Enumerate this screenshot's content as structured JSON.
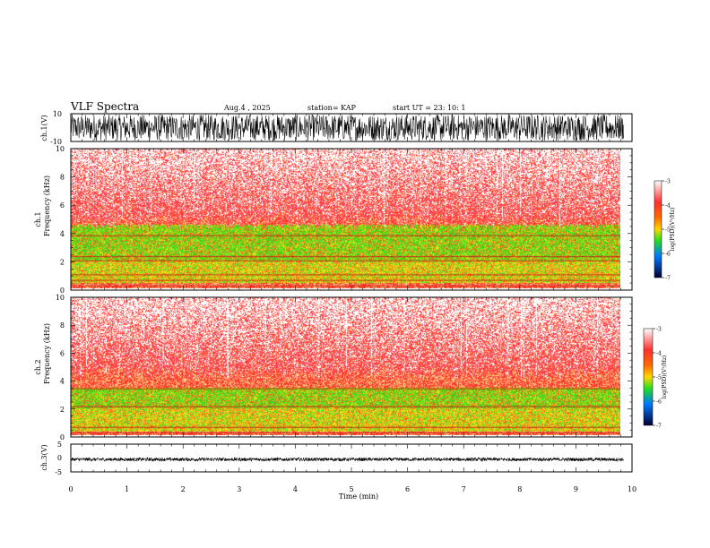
{
  "header": {
    "title": "VLF Spectra",
    "date": "Aug.4 , 2025",
    "station": "station= KAP",
    "start": "start UT = 23: 10: 1"
  },
  "chart_data": [
    {
      "type": "line",
      "panel": "ch1-waveform",
      "ylabel": "ch.1(V)",
      "ylim": [
        -10,
        10
      ],
      "yticks": [
        "10",
        "-10"
      ],
      "xlim": [
        0,
        10
      ],
      "amplitude_range": [
        -10,
        10
      ],
      "color": "#000000"
    },
    {
      "type": "heatmap",
      "panel": "ch1-spectrogram",
      "ylabel": "ch.1\nFrequency (kHz)",
      "ylim": [
        0,
        10
      ],
      "yticks": [
        "0",
        "2",
        "4",
        "6",
        "8",
        "10"
      ],
      "xlim": [
        0,
        10
      ],
      "colorbar": {
        "label": "log(PSD)(V²/Hz)",
        "range": [
          -7,
          -3
        ],
        "ticks": [
          "-3",
          "-4",
          "-5",
          "-6",
          "-7"
        ]
      },
      "bands_khz": {
        "background_above": [
          4.8,
          10
        ],
        "green_band": [
          2.0,
          4.6
        ],
        "mixed": [
          0.4,
          2.0
        ]
      },
      "lines_khz": [
        0.2,
        0.6,
        1.0,
        2.0,
        2.3,
        3.8
      ]
    },
    {
      "type": "heatmap",
      "panel": "ch2-spectrogram",
      "ylabel": "ch.2\nFrequency (kHz)",
      "ylim": [
        0,
        10
      ],
      "yticks": [
        "0",
        "2",
        "4",
        "6",
        "8",
        "10"
      ],
      "xlim": [
        0,
        10
      ],
      "colorbar": {
        "label": "log(PSD)(V²/Hz)",
        "range": [
          -7,
          -3
        ],
        "ticks": [
          "-3",
          "-4",
          "-5",
          "-6",
          "-7"
        ]
      },
      "bands_khz": {
        "background_above": [
          4.5,
          10
        ],
        "green_band": [
          2.0,
          3.5
        ],
        "mixed": [
          0.3,
          2.0
        ]
      },
      "lines_khz": [
        0.2,
        0.6,
        2.1,
        3.4
      ]
    },
    {
      "type": "line",
      "panel": "ch3-waveform",
      "ylabel": "ch.3(V)",
      "ylim": [
        -5,
        5
      ],
      "yticks": [
        "5",
        "0",
        "-5"
      ],
      "xlim": [
        0,
        10
      ],
      "amplitude_range": [
        -1,
        0
      ],
      "color": "#000000"
    }
  ],
  "xaxis": {
    "label": "Time (min)",
    "ticks": [
      "0",
      "1",
      "2",
      "3",
      "4",
      "5",
      "6",
      "7",
      "8",
      "9",
      "10"
    ],
    "data_end_min": 9.85
  }
}
